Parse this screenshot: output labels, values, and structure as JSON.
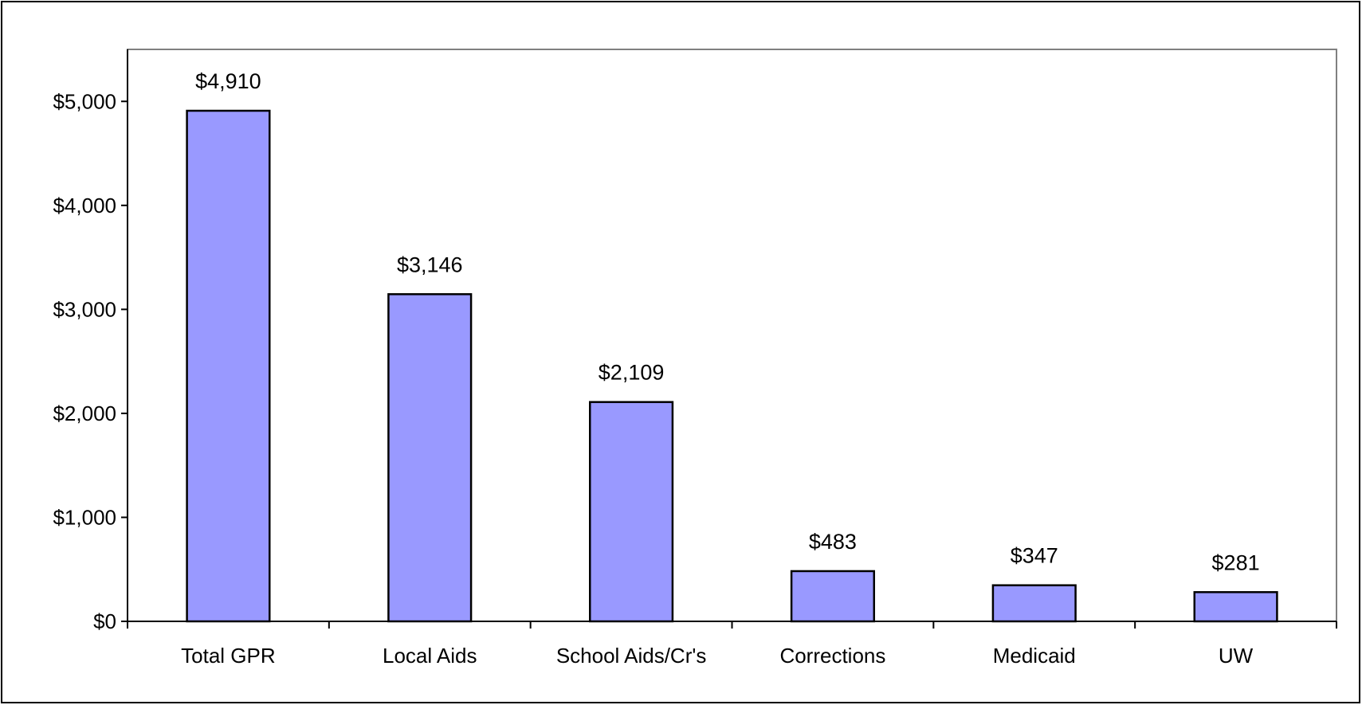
{
  "chart_data": {
    "type": "bar",
    "categories": [
      "Total GPR",
      "Local Aids",
      "School Aids/Cr's",
      "Corrections",
      "Medicaid",
      "UW"
    ],
    "values": [
      4910,
      3146,
      2109,
      483,
      347,
      281
    ],
    "data_labels": [
      "$4,910",
      "$3,146",
      "$2,109",
      "$483",
      "$347",
      "$281"
    ],
    "ylim": [
      0,
      5500
    ],
    "yticks": [
      0,
      1000,
      2000,
      3000,
      4000,
      5000
    ],
    "ytick_labels": [
      "$0",
      "$1,000",
      "$2,000",
      "$3,000",
      "$4,000",
      "$5,000"
    ],
    "title": "",
    "xlabel": "",
    "ylabel": "",
    "grid": false,
    "legend": "none",
    "bar_color": "#9999ff",
    "bar_edge_color": "#000000"
  }
}
